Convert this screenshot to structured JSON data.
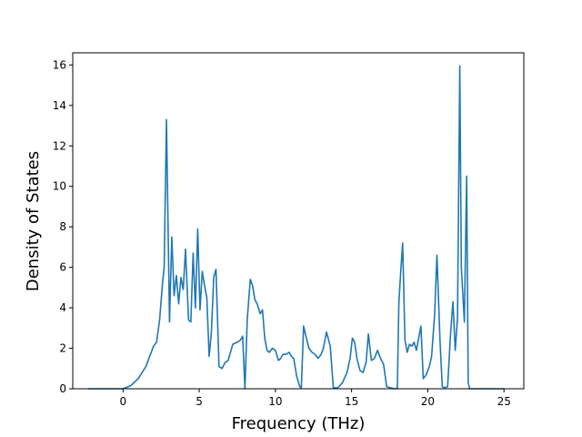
{
  "chart_data": {
    "type": "line",
    "title": "",
    "xlabel": "Frequency (THz)",
    "ylabel": "Density of States",
    "xlim": [
      -3.3,
      26.3
    ],
    "ylim": [
      0,
      16.6
    ],
    "xticks": [
      0,
      5,
      10,
      15,
      20,
      25
    ],
    "yticks": [
      0,
      2,
      4,
      6,
      8,
      10,
      12,
      14,
      16
    ],
    "grid": false,
    "legend": "none",
    "line_color": "#1f77b4",
    "series": [
      {
        "x": [
          -2.3,
          0.0,
          0.5,
          1.0,
          1.5,
          1.8,
          2.0,
          2.2,
          2.4,
          2.6,
          2.7,
          2.85,
          3.05,
          3.2,
          3.35,
          3.5,
          3.65,
          3.8,
          3.95,
          4.1,
          4.3,
          4.45,
          4.6,
          4.75,
          4.9,
          5.05,
          5.2,
          5.35,
          5.5,
          5.65,
          5.8,
          5.95,
          6.1,
          6.3,
          6.5,
          6.7,
          6.9,
          7.2,
          7.5,
          7.7,
          7.85,
          8.0,
          8.15,
          8.35,
          8.5,
          8.65,
          8.8,
          9.0,
          9.15,
          9.3,
          9.45,
          9.6,
          9.8,
          10.0,
          10.2,
          10.35,
          10.5,
          10.7,
          10.9,
          11.05,
          11.2,
          11.4,
          11.6,
          11.7,
          11.85,
          12.0,
          12.2,
          12.4,
          12.6,
          12.8,
          13.0,
          13.15,
          13.35,
          13.6,
          13.8,
          14.1,
          14.4,
          14.7,
          14.9,
          15.05,
          15.2,
          15.35,
          15.55,
          15.75,
          15.95,
          16.1,
          16.3,
          16.5,
          16.7,
          16.9,
          17.1,
          17.3,
          17.8,
          18.0,
          18.1,
          18.2,
          18.35,
          18.5,
          18.65,
          18.8,
          18.95,
          19.1,
          19.25,
          19.4,
          19.55,
          19.7,
          19.9,
          20.1,
          20.25,
          20.45,
          20.6,
          20.8,
          20.95,
          21.1,
          21.3,
          21.5,
          21.65,
          21.8,
          21.95,
          22.1,
          22.2,
          22.4,
          22.55,
          22.65,
          22.75,
          22.85,
          23.0,
          25.0
        ],
        "y": [
          0,
          0,
          0.15,
          0.5,
          1.1,
          1.7,
          2.1,
          2.3,
          3.4,
          5.3,
          6.0,
          13.3,
          3.3,
          7.5,
          4.6,
          5.6,
          4.2,
          5.5,
          4.9,
          6.9,
          3.4,
          3.3,
          6.7,
          4.0,
          7.9,
          3.9,
          5.8,
          5.1,
          4.5,
          1.6,
          2.8,
          5.5,
          5.9,
          1.1,
          1.0,
          1.3,
          1.4,
          2.2,
          2.3,
          2.4,
          2.6,
          0,
          3.4,
          5.4,
          5.1,
          4.4,
          4.2,
          3.7,
          3.9,
          2.5,
          1.9,
          1.8,
          2.0,
          1.9,
          1.4,
          1.5,
          1.7,
          1.7,
          1.8,
          1.6,
          1.5,
          0.6,
          0.1,
          0.05,
          3.1,
          2.6,
          2.0,
          1.8,
          1.7,
          1.5,
          1.7,
          2.0,
          2.8,
          2.1,
          0.05,
          0.05,
          0.3,
          0.8,
          1.5,
          2.5,
          2.3,
          1.5,
          0.9,
          0.8,
          1.3,
          2.7,
          1.4,
          1.5,
          1.9,
          1.5,
          1.2,
          0.1,
          0,
          0,
          4.2,
          5.5,
          7.2,
          2.4,
          1.8,
          2.2,
          2.1,
          2.3,
          1.9,
          2.5,
          3.1,
          0.5,
          0.7,
          1.1,
          1.6,
          3.7,
          6.6,
          2.4,
          0.1,
          0.05,
          0.1,
          2.8,
          4.3,
          1.9,
          3.5,
          15.95,
          6.0,
          3.3,
          10.5,
          0.3,
          0,
          0,
          0,
          0
        ]
      }
    ]
  }
}
